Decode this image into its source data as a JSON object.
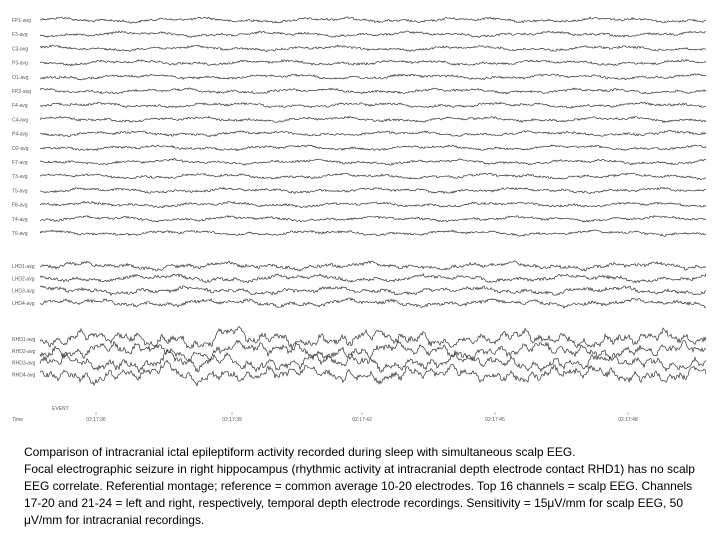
{
  "chart_data": {
    "type": "line",
    "channels": [
      {
        "label": "FP1-avg",
        "group": "scalp"
      },
      {
        "label": "F3-avg",
        "group": "scalp"
      },
      {
        "label": "C3-avg",
        "group": "scalp"
      },
      {
        "label": "P3-avg",
        "group": "scalp"
      },
      {
        "label": "O1-avg",
        "group": "scalp"
      },
      {
        "label": "FP2-avg",
        "group": "scalp"
      },
      {
        "label": "F4-avg",
        "group": "scalp"
      },
      {
        "label": "C4-avg",
        "group": "scalp"
      },
      {
        "label": "P4-avg",
        "group": "scalp"
      },
      {
        "label": "O2-avg",
        "group": "scalp"
      },
      {
        "label": "F7-avg",
        "group": "scalp"
      },
      {
        "label": "T3-avg",
        "group": "scalp"
      },
      {
        "label": "T5-avg",
        "group": "scalp"
      },
      {
        "label": "F8-avg",
        "group": "scalp"
      },
      {
        "label": "T4-avg",
        "group": "scalp"
      },
      {
        "label": "T6-avg",
        "group": "scalp"
      },
      {
        "label": "LHD1-avg",
        "group": "left-depth"
      },
      {
        "label": "LHD2-avg",
        "group": "left-depth"
      },
      {
        "label": "LHD3-avg",
        "group": "left-depth"
      },
      {
        "label": "LHD4-avg",
        "group": "left-depth"
      },
      {
        "label": "RHD1-avg",
        "group": "right-depth"
      },
      {
        "label": "RHD2-avg",
        "group": "right-depth"
      },
      {
        "label": "RHD3-avg",
        "group": "right-depth"
      },
      {
        "label": "RHD4-avg",
        "group": "right-depth"
      }
    ],
    "time_axis": {
      "title": "Time",
      "ticks": [
        "02:17:36",
        "02:17:39",
        "02:17:42",
        "02:17:45",
        "02:17:48"
      ]
    },
    "event_label": "EVENT",
    "scalp_channels": 16,
    "sensitivity": {
      "scalp": "15μV/mm",
      "intracranial": "50 μV/mm"
    }
  },
  "caption": {
    "title": "Comparison of intracranial ictal epileptiform activity recorded during sleep with simultaneous scalp EEG.",
    "body": "Focal electrographic seizure in right hippocampus (rhythmic activity at intracranial depth electrode contact RHD1) has no scalp EEG correlate. Referential montage; reference = common average 10-20 electrodes. Top 16 channels = scalp EEG. Channels 17-20 and 21-24 = left and right, respectively, temporal depth electrode recordings. Sensitivity = 15μV/mm for scalp EEG, 50 μV/mm for intracranial recordings."
  }
}
